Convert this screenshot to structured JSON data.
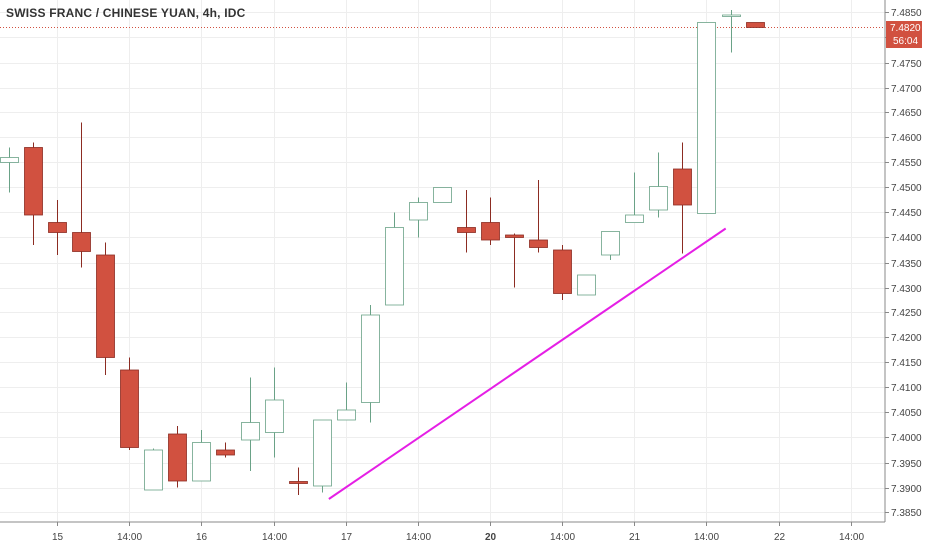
{
  "title": "SWISS FRANC / CHINESE YUAN, 4h, IDC",
  "colors": {
    "up_stroke": "#6aa287",
    "down_fill": "#d15140",
    "down_stroke": "#8c2c22",
    "trendline": "#e51fe5",
    "price_line": "#d15140",
    "grid": "#eeeeee",
    "axis": "#888888"
  },
  "price_label": {
    "price": "7.4820",
    "countdown": "56:04"
  },
  "chart_data": {
    "type": "candlestick",
    "y_axis": {
      "ylim": [
        7.3835,
        7.4875
      ],
      "ticks": [
        "7.3850",
        "7.3900",
        "7.3950",
        "7.4000",
        "7.4050",
        "7.4100",
        "7.4150",
        "7.4200",
        "7.4250",
        "7.4300",
        "7.4350",
        "7.4400",
        "7.4450",
        "7.4500",
        "7.4550",
        "7.4600",
        "7.4650",
        "7.4700",
        "7.4750",
        "7.4800",
        "7.4850"
      ]
    },
    "x_axis": {
      "labels": [
        {
          "label": "15",
          "slot": 2.0,
          "bold": false
        },
        {
          "label": "14:00",
          "slot": 5.0,
          "bold": false
        },
        {
          "label": "16",
          "slot": 8.0,
          "bold": false
        },
        {
          "label": "14:00",
          "slot": 11.0,
          "bold": false
        },
        {
          "label": "17",
          "slot": 14.0,
          "bold": false
        },
        {
          "label": "14:00",
          "slot": 17.0,
          "bold": false
        },
        {
          "label": "20",
          "slot": 20.0,
          "bold": true
        },
        {
          "label": "14:00",
          "slot": 23.0,
          "bold": false
        },
        {
          "label": "21",
          "slot": 26.0,
          "bold": false
        },
        {
          "label": "14:00",
          "slot": 29.0,
          "bold": false
        },
        {
          "label": "22",
          "slot": 32.0,
          "bold": false
        },
        {
          "label": "14:00",
          "slot": 35.0,
          "bold": false
        }
      ]
    },
    "candles": [
      {
        "o": 7.455,
        "h": 7.458,
        "l": 7.449,
        "c": 7.456
      },
      {
        "o": 7.458,
        "h": 7.459,
        "l": 7.4385,
        "c": 7.4445
      },
      {
        "o": 7.443,
        "h": 7.4475,
        "l": 7.4365,
        "c": 7.441
      },
      {
        "o": 7.441,
        "h": 7.463,
        "l": 7.434,
        "c": 7.4372
      },
      {
        "o": 7.4365,
        "h": 7.439,
        "l": 7.4125,
        "c": 7.416
      },
      {
        "o": 7.4135,
        "h": 7.416,
        "l": 7.3975,
        "c": 7.398
      },
      {
        "o": 7.3895,
        "h": 7.3978,
        "l": 7.3895,
        "c": 7.3975
      },
      {
        "o": 7.4007,
        "h": 7.4023,
        "l": 7.39,
        "c": 7.3913
      },
      {
        "o": 7.3913,
        "h": 7.4015,
        "l": 7.3913,
        "c": 7.399
      },
      {
        "o": 7.3975,
        "h": 7.399,
        "l": 7.396,
        "c": 7.3965
      },
      {
        "o": 7.3995,
        "h": 7.412,
        "l": 7.3933,
        "c": 7.403
      },
      {
        "o": 7.401,
        "h": 7.414,
        "l": 7.396,
        "c": 7.4075
      },
      {
        "o": 7.3912,
        "h": 7.394,
        "l": 7.3885,
        "c": 7.3908
      },
      {
        "o": 7.3903,
        "h": 7.4035,
        "l": 7.389,
        "c": 7.4035
      },
      {
        "o": 7.4035,
        "h": 7.411,
        "l": 7.4035,
        "c": 7.4055
      },
      {
        "o": 7.407,
        "h": 7.4265,
        "l": 7.403,
        "c": 7.4245
      },
      {
        "o": 7.4265,
        "h": 7.445,
        "l": 7.4265,
        "c": 7.442
      },
      {
        "o": 7.4435,
        "h": 7.448,
        "l": 7.44,
        "c": 7.447
      },
      {
        "o": 7.447,
        "h": 7.45,
        "l": 7.447,
        "c": 7.45
      },
      {
        "o": 7.442,
        "h": 7.4495,
        "l": 7.437,
        "c": 7.441
      },
      {
        "o": 7.443,
        "h": 7.448,
        "l": 7.4385,
        "c": 7.4395
      },
      {
        "o": 7.4405,
        "h": 7.4408,
        "l": 7.43,
        "c": 7.44
      },
      {
        "o": 7.4395,
        "h": 7.4515,
        "l": 7.437,
        "c": 7.438
      },
      {
        "o": 7.4375,
        "h": 7.4385,
        "l": 7.4275,
        "c": 7.4288
      },
      {
        "o": 7.4285,
        "h": 7.4325,
        "l": 7.4285,
        "c": 7.4325
      },
      {
        "o": 7.4365,
        "h": 7.4412,
        "l": 7.4355,
        "c": 7.4412
      },
      {
        "o": 7.443,
        "h": 7.453,
        "l": 7.443,
        "c": 7.4445
      },
      {
        "o": 7.4455,
        "h": 7.457,
        "l": 7.444,
        "c": 7.4502
      },
      {
        "o": 7.4537,
        "h": 7.459,
        "l": 7.4368,
        "c": 7.4465
      },
      {
        "o": 7.4448,
        "h": 7.483,
        "l": 7.4448,
        "c": 7.483
      },
      {
        "o": 7.4845,
        "h": 7.4855,
        "l": 7.477,
        "c": 7.4845
      },
      {
        "o": 7.483,
        "h": 7.483,
        "l": 7.482,
        "c": 7.482
      }
    ],
    "annotations": [
      {
        "type": "trendline",
        "from": {
          "slot": 13.3,
          "y": 7.3877
        },
        "to": {
          "slot": 29.8,
          "y": 7.4418
        }
      }
    ]
  }
}
